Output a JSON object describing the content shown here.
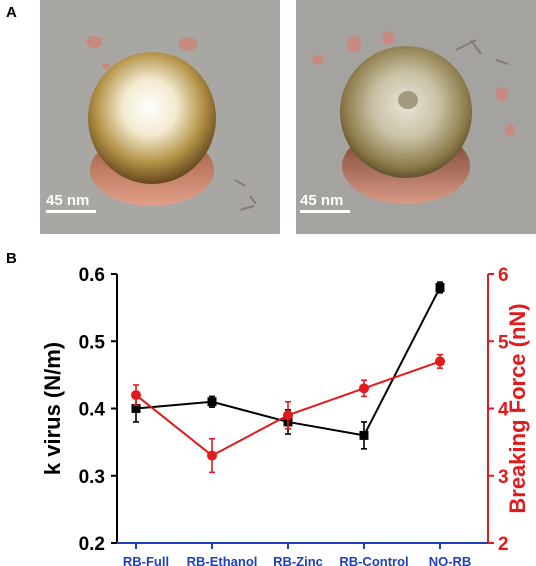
{
  "panel_a": {
    "label": "A",
    "images": [
      {
        "scale_bar": "45 nm"
      },
      {
        "scale_bar": "45 nm"
      }
    ]
  },
  "panel_b": {
    "label": "B"
  },
  "chart_data": {
    "type": "line",
    "categories": [
      "RB-Full",
      "RB-Ethanol",
      "RB-Zinc",
      "RB-Control",
      "NO-RB"
    ],
    "ylabel": "k virus (N/m)",
    "y2label": "Breaking Force (nN)",
    "ylim": [
      0.2,
      0.6
    ],
    "y2lim": [
      2,
      6
    ],
    "yticks": [
      "0.2",
      "0.3",
      "0.4",
      "0.5",
      "0.6"
    ],
    "y2ticks": [
      "2",
      "3",
      "4",
      "5",
      "6"
    ],
    "series": [
      {
        "axis": "left",
        "color": "#000000",
        "marker": "square",
        "values": [
          0.4,
          0.41,
          0.38,
          0.36,
          0.58
        ],
        "errors": [
          0.02,
          0.008,
          0.018,
          0.02,
          0.008
        ]
      },
      {
        "axis": "right",
        "color": "#e31a1c",
        "marker": "circle",
        "values": [
          4.2,
          3.3,
          3.9,
          4.3,
          4.7
        ],
        "errors": [
          0.15,
          0.25,
          0.2,
          0.12,
          0.1
        ]
      }
    ],
    "colors": {
      "left_axis": "#000000",
      "right_axis": "#e31a1c",
      "x_axis": "#1f3fbf",
      "categories": "#1f3fbf"
    }
  }
}
